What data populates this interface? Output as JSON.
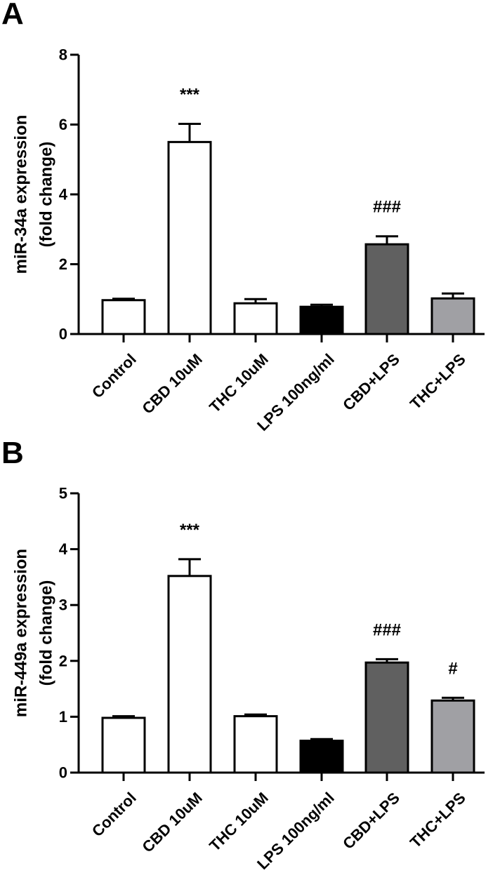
{
  "chart_data": [
    {
      "panel": "A",
      "type": "bar",
      "title": "",
      "ylabel": [
        "miR-34a expression",
        "(fold change)"
      ],
      "xlabel": "",
      "ylim": [
        0,
        8
      ],
      "yticks": [
        0,
        2,
        4,
        6,
        8
      ],
      "categories": [
        "Control",
        "CBD 10uM",
        "THC 10uM",
        "LPS 100ng/ml",
        "CBD+LPS",
        "THC+LPS"
      ],
      "values": [
        0.97,
        5.5,
        0.88,
        0.78,
        2.57,
        1.02
      ],
      "errors": [
        0.04,
        0.52,
        0.12,
        0.06,
        0.23,
        0.14
      ],
      "annotations": [
        "",
        "***",
        "",
        "",
        "###",
        ""
      ],
      "bar_colors": [
        "#ffffff",
        "#ffffff",
        "#ffffff",
        "#000000",
        "#606060",
        "#a0a0a4"
      ],
      "grid": false
    },
    {
      "panel": "B",
      "type": "bar",
      "title": "",
      "ylabel": [
        "miR-449a expression",
        "(fold change)"
      ],
      "xlabel": "",
      "ylim": [
        0,
        5
      ],
      "yticks": [
        0,
        1,
        2,
        3,
        4,
        5
      ],
      "categories": [
        "Control",
        "CBD 10uM",
        "THC 10uM",
        "LPS 100ng/ml",
        "CBD+LPS",
        "THC+LPS"
      ],
      "values": [
        0.98,
        3.52,
        1.01,
        0.57,
        1.97,
        1.29
      ],
      "errors": [
        0.03,
        0.3,
        0.03,
        0.03,
        0.06,
        0.05
      ],
      "annotations": [
        "",
        "***",
        "",
        "",
        "###",
        "#"
      ],
      "bar_colors": [
        "#ffffff",
        "#ffffff",
        "#ffffff",
        "#000000",
        "#606060",
        "#a0a0a4"
      ],
      "grid": false
    }
  ]
}
